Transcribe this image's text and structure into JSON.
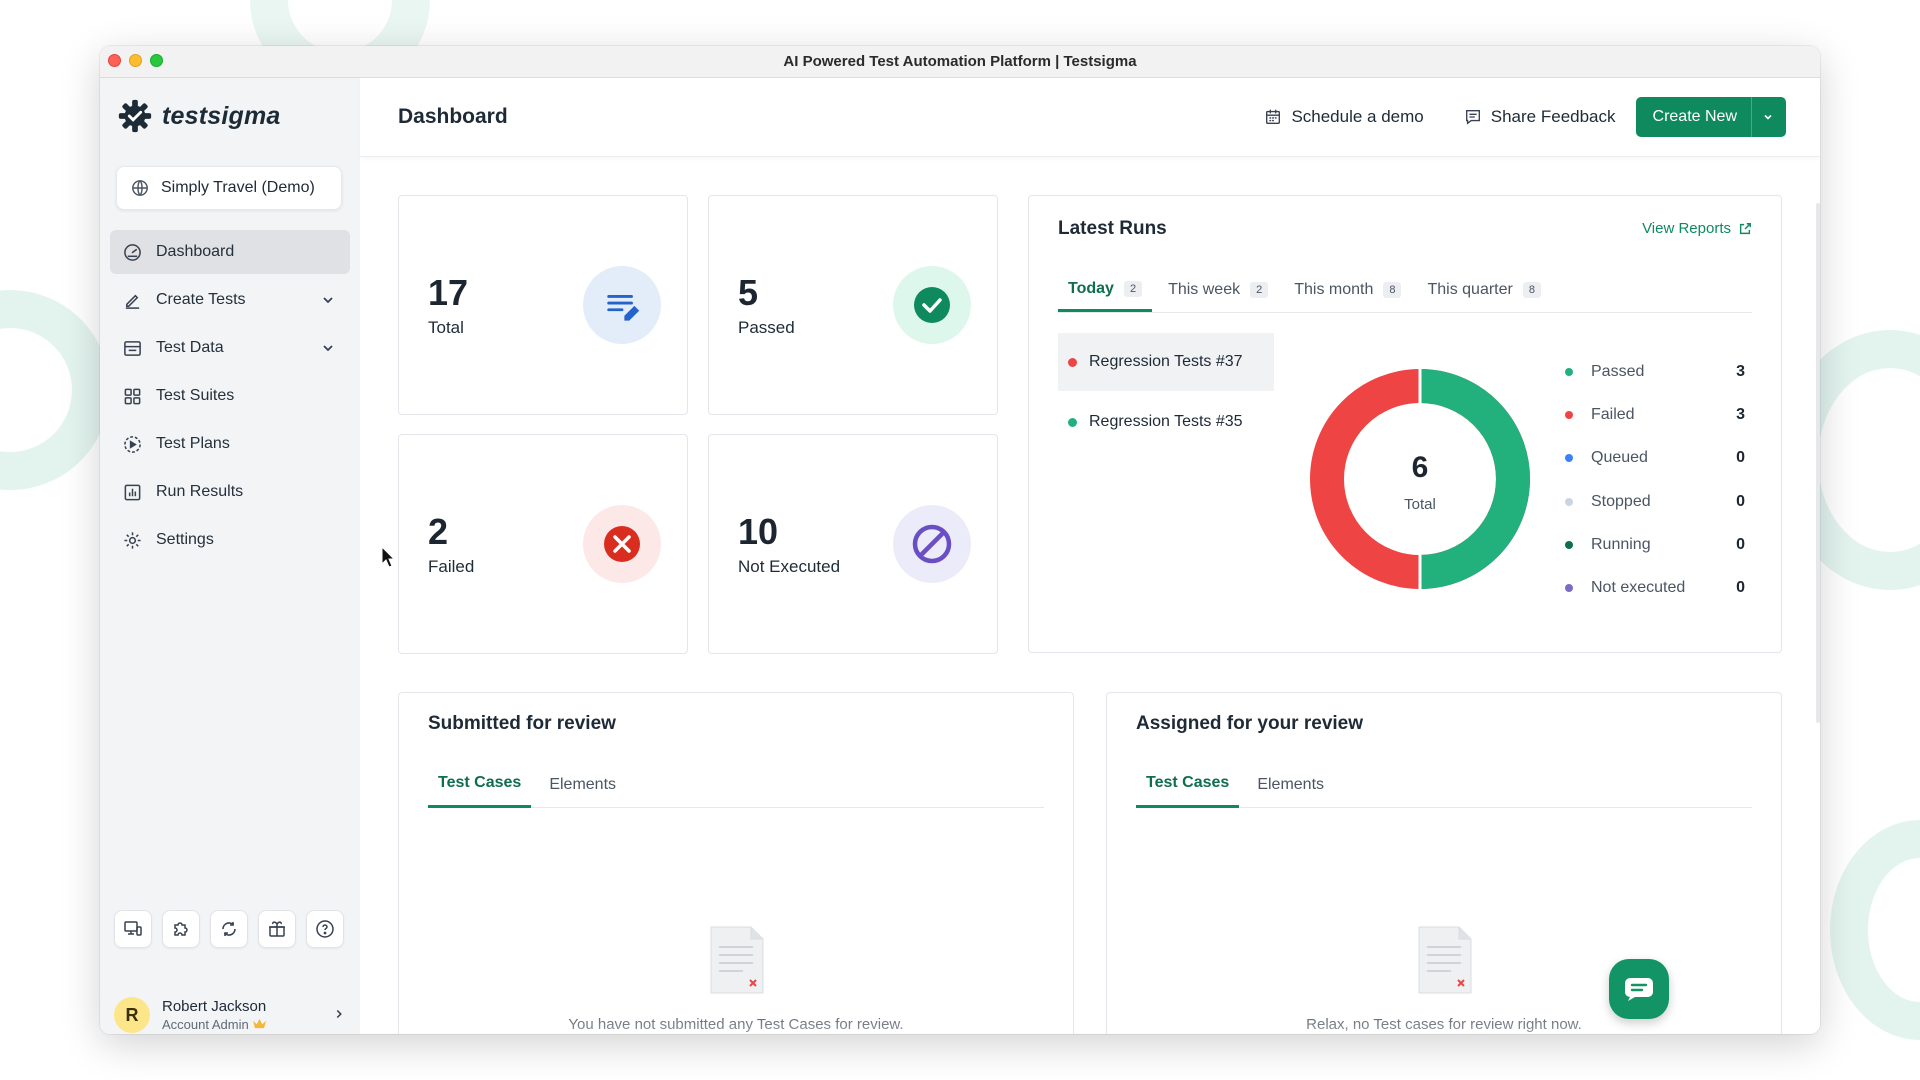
{
  "window": {
    "title": "AI Powered Test Automation Platform | Testsigma"
  },
  "brand": {
    "name": "testsigma",
    "accent": "#0f8a5f"
  },
  "project": {
    "name": "Simply Travel (Demo)"
  },
  "sidebar": {
    "items": [
      {
        "label": "Dashboard",
        "icon": "gauge-icon",
        "active": true
      },
      {
        "label": "Create Tests",
        "icon": "pen-icon",
        "expandable": true
      },
      {
        "label": "Test Data",
        "icon": "table-icon",
        "expandable": true
      },
      {
        "label": "Test Suites",
        "icon": "grid-icon"
      },
      {
        "label": "Test Plans",
        "icon": "play-circle-icon"
      },
      {
        "label": "Run Results",
        "icon": "bar-chart-icon"
      },
      {
        "label": "Settings",
        "icon": "gear-icon"
      }
    ],
    "tools": [
      "devices-icon",
      "puzzle-icon",
      "refresh-icon",
      "gift-icon",
      "help-icon"
    ]
  },
  "user": {
    "initial": "R",
    "name": "Robert Jackson",
    "role": "Account Admin"
  },
  "header": {
    "title": "Dashboard",
    "schedule_demo": "Schedule a demo",
    "share_feedback": "Share Feedback",
    "create_new": "Create New"
  },
  "stats": {
    "total": {
      "value": "17",
      "label": "Total"
    },
    "passed": {
      "value": "5",
      "label": "Passed"
    },
    "failed": {
      "value": "2",
      "label": "Failed"
    },
    "not_executed": {
      "value": "10",
      "label": "Not Executed"
    }
  },
  "latest_runs": {
    "title": "Latest Runs",
    "view_reports": "View Reports",
    "tabs": [
      {
        "label": "Today",
        "count": "2",
        "active": true
      },
      {
        "label": "This week",
        "count": "2"
      },
      {
        "label": "This month",
        "count": "8"
      },
      {
        "label": "This quarter",
        "count": "8"
      }
    ],
    "runs": [
      {
        "name": "Regression Tests #37",
        "status_color": "#ef4444",
        "selected": true
      },
      {
        "name": "Regression Tests #35",
        "status_color": "#22b07d"
      }
    ],
    "donut": {
      "total": "6",
      "total_label": "Total",
      "passed": 3,
      "failed": 3
    },
    "legend": [
      {
        "label": "Passed",
        "value": "3",
        "color": "#22b07d"
      },
      {
        "label": "Failed",
        "value": "3",
        "color": "#ef4444"
      },
      {
        "label": "Queued",
        "value": "0",
        "color": "#3b82f6"
      },
      {
        "label": "Stopped",
        "value": "0",
        "color": "#cbd5e1"
      },
      {
        "label": "Running",
        "value": "0",
        "color": "#0f6e4d"
      },
      {
        "label": "Not executed",
        "value": "0",
        "color": "#7c6bc4"
      }
    ]
  },
  "submitted_review": {
    "title": "Submitted for review",
    "tabs": [
      "Test Cases",
      "Elements"
    ],
    "empty_message": "You have not submitted any Test Cases for review."
  },
  "assigned_review": {
    "title": "Assigned for your review",
    "tabs": [
      "Test Cases",
      "Elements"
    ],
    "empty_message": "Relax, no Test cases for review right now."
  }
}
